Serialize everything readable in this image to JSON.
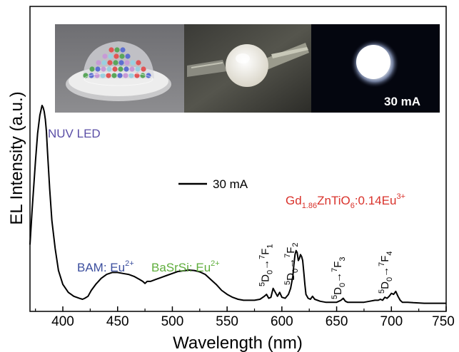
{
  "chart_data": {
    "type": "line",
    "xlabel": "Wavelength (nm)",
    "ylabel": "EL Intensity (a.u.)",
    "xlim": [
      370,
      750
    ],
    "xticks": [
      400,
      450,
      500,
      550,
      600,
      650,
      700,
      750
    ],
    "yticks_shown": false,
    "legend": {
      "label": "30 mA",
      "placement": "center"
    },
    "series": [
      {
        "name": "30 mA",
        "x": [
          370,
          372,
          375,
          377,
          379,
          381,
          382,
          383,
          384,
          385,
          386,
          388,
          390,
          393,
          396,
          400,
          405,
          410,
          415,
          418,
          420,
          423,
          426,
          430,
          435,
          440,
          445,
          450,
          455,
          460,
          465,
          470,
          473,
          475,
          477,
          480,
          485,
          490,
          495,
          500,
          505,
          510,
          515,
          520,
          525,
          530,
          535,
          540,
          545,
          550,
          555,
          560,
          565,
          570,
          575,
          580,
          584,
          586,
          588,
          590,
          592,
          594,
          596,
          598,
          600,
          603,
          606,
          608,
          610,
          611,
          612,
          613,
          614,
          615,
          616,
          617,
          618,
          619,
          620,
          621,
          622,
          624,
          626,
          628,
          630,
          635,
          640,
          645,
          650,
          652,
          654,
          656,
          658,
          660,
          665,
          670,
          675,
          680,
          685,
          688,
          690,
          692,
          694,
          696,
          698,
          700,
          702,
          704,
          706,
          708,
          710,
          715,
          720,
          730,
          740,
          750
        ],
        "y": [
          0.3,
          0.48,
          0.72,
          0.86,
          0.95,
          1.0,
          0.99,
          0.97,
          0.93,
          0.87,
          0.77,
          0.58,
          0.42,
          0.28,
          0.17,
          0.1,
          0.06,
          0.04,
          0.03,
          0.025,
          0.03,
          0.04,
          0.07,
          0.1,
          0.13,
          0.15,
          0.16,
          0.16,
          0.155,
          0.15,
          0.14,
          0.125,
          0.115,
          0.105,
          0.115,
          0.115,
          0.125,
          0.135,
          0.145,
          0.155,
          0.165,
          0.168,
          0.172,
          0.17,
          0.163,
          0.15,
          0.125,
          0.1,
          0.07,
          0.05,
          0.035,
          0.025,
          0.02,
          0.02,
          0.02,
          0.025,
          0.04,
          0.05,
          0.03,
          0.035,
          0.08,
          0.06,
          0.04,
          0.06,
          0.035,
          0.03,
          0.05,
          0.08,
          0.14,
          0.2,
          0.25,
          0.27,
          0.26,
          0.22,
          0.23,
          0.25,
          0.24,
          0.22,
          0.16,
          0.1,
          0.05,
          0.03,
          0.025,
          0.04,
          0.025,
          0.015,
          0.01,
          0.01,
          0.01,
          0.015,
          0.02,
          0.03,
          0.015,
          0.01,
          0.01,
          0.01,
          0.01,
          0.015,
          0.02,
          0.02,
          0.025,
          0.02,
          0.035,
          0.03,
          0.04,
          0.055,
          0.05,
          0.065,
          0.04,
          0.02,
          0.01,
          0.01,
          0.008,
          0.005,
          0.005,
          0.005
        ]
      }
    ],
    "annotations": {
      "nuv_led": "NUV LED",
      "bam_prefix": "BAM: Eu",
      "bam_sup": "2+",
      "basrsi_prefix": "BaSrSi: Eu",
      "basrsi_sup": "2+",
      "phosphor_gd": "Gd",
      "phosphor_gd_sub": "1.86",
      "phosphor_mid": "ZnTiO",
      "phosphor_o_sub": "6",
      "phosphor_eu": ":0.14Eu",
      "phosphor_eu_sup": "3+",
      "transitions": [
        {
          "upper_sup": "5",
          "upper": "D",
          "upper_sub": "0",
          "lower_sup": "7",
          "lower": "F",
          "lower_sub": "1"
        },
        {
          "upper_sup": "5",
          "upper": "D",
          "upper_sub": "0",
          "lower_sup": "7",
          "lower": "F",
          "lower_sub": "2"
        },
        {
          "upper_sup": "5",
          "upper": "D",
          "upper_sub": "0",
          "lower_sup": "7",
          "lower": "F",
          "lower_sub": "3"
        },
        {
          "upper_sup": "5",
          "upper": "D",
          "upper_sub": "0",
          "lower_sup": "7",
          "lower": "F",
          "lower_sub": "4"
        }
      ],
      "inset_current": "30 mA"
    },
    "colors": {
      "line": "#000000",
      "nuv_led": "#5a4ea6",
      "bam": "#3b4e9e",
      "basrsi": "#5fae3c",
      "phosphor": "#d9322b"
    }
  }
}
